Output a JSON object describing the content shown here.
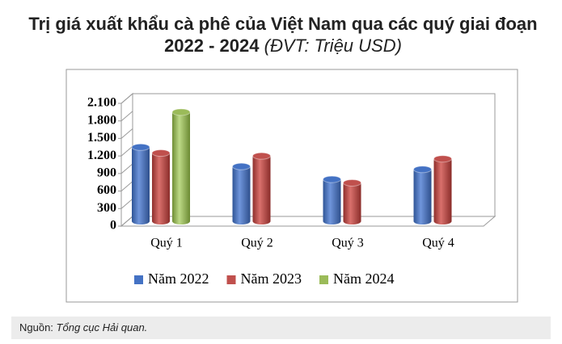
{
  "chart_data": {
    "type": "bar",
    "title": "Trị giá xuất khẩu cà phê của Việt Nam qua các quý giai đoạn 2022 - 2024",
    "unit": "(ĐVT: Triệu USD)",
    "categories": [
      "Quý 1",
      "Quý 2",
      "Quý 3",
      "Quý 4"
    ],
    "series": [
      {
        "name": "Năm 2022",
        "color": "#4472c4",
        "values": [
          1350,
          1020,
          800,
          970
        ]
      },
      {
        "name": "Năm 2023",
        "color": "#c0504d",
        "values": [
          1250,
          1200,
          740,
          1150
        ]
      },
      {
        "name": "Năm 2024",
        "color": "#9bbb59",
        "values": [
          1950,
          null,
          null,
          null
        ]
      }
    ],
    "ylim": [
      0,
      2100
    ],
    "yticks": [
      0,
      300,
      600,
      900,
      {
        "value": 1200,
        "label": "1.200"
      },
      {
        "value": 1500,
        "label": "1.500"
      },
      {
        "value": 1800,
        "label": "1.800"
      },
      {
        "value": 2100,
        "label": "2.100"
      }
    ],
    "grid": false
  },
  "source_label": "Nguồn:",
  "source": "Tổng cục Hải quan."
}
